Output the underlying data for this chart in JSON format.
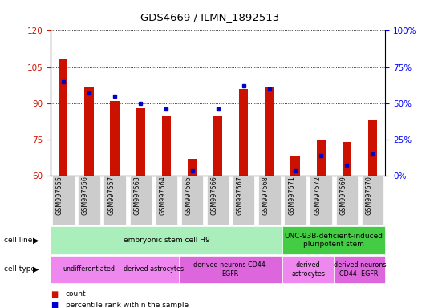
{
  "title": "GDS4669 / ILMN_1892513",
  "samples": [
    "GSM997555",
    "GSM997556",
    "GSM997557",
    "GSM997563",
    "GSM997564",
    "GSM997565",
    "GSM997566",
    "GSM997567",
    "GSM997568",
    "GSM997571",
    "GSM997572",
    "GSM997569",
    "GSM997570"
  ],
  "count_values": [
    108,
    97,
    91,
    88,
    85,
    67,
    85,
    96,
    97,
    68,
    75,
    74,
    83
  ],
  "percentile_values": [
    65,
    57,
    55,
    50,
    46,
    3,
    46,
    62,
    60,
    3,
    14,
    7,
    15
  ],
  "ylim_left": [
    60,
    120
  ],
  "ylim_right": [
    0,
    100
  ],
  "yticks_left": [
    60,
    75,
    90,
    105,
    120
  ],
  "yticks_right": [
    0,
    25,
    50,
    75,
    100
  ],
  "bar_color": "#cc1100",
  "percentile_color": "#0000cc",
  "cell_line_groups": [
    {
      "label": "embryonic stem cell H9",
      "start": 0,
      "end": 9,
      "color": "#aaeebb"
    },
    {
      "label": "UNC-93B-deficient-induced\npluripotent stem",
      "start": 9,
      "end": 13,
      "color": "#44cc44"
    }
  ],
  "cell_type_groups": [
    {
      "label": "undifferentiated",
      "start": 0,
      "end": 3,
      "color": "#ee88ee"
    },
    {
      "label": "derived astrocytes",
      "start": 3,
      "end": 5,
      "color": "#ee88ee"
    },
    {
      "label": "derived neurons CD44-\nEGFR-",
      "start": 5,
      "end": 9,
      "color": "#dd66dd"
    },
    {
      "label": "derived\nastrocytes",
      "start": 9,
      "end": 11,
      "color": "#ee88ee"
    },
    {
      "label": "derived neurons\nCD44- EGFR-",
      "start": 11,
      "end": 13,
      "color": "#dd66dd"
    }
  ],
  "legend_items": [
    {
      "label": "count",
      "color": "#cc1100"
    },
    {
      "label": "percentile rank within the sample",
      "color": "#0000cc"
    }
  ]
}
